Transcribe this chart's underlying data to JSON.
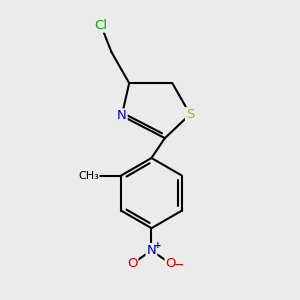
{
  "background_color": "#ebebeb",
  "atom_colors": {
    "C": "#000000",
    "N": "#0000cc",
    "S": "#ccaa00",
    "Cl": "#00aa00",
    "O": "#dd0000"
  },
  "bond_color": "#000000",
  "bond_width": 1.5,
  "figsize": [
    3.0,
    3.0
  ],
  "dpi": 100
}
